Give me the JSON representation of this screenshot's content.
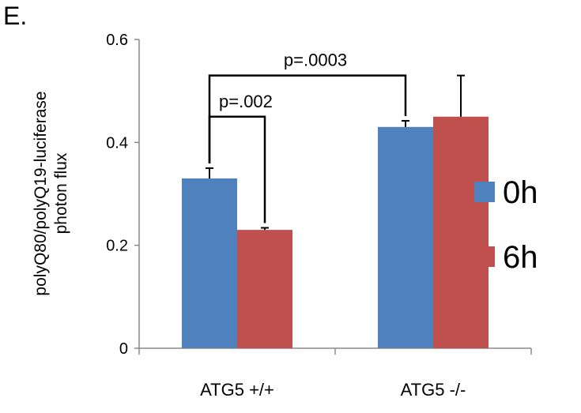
{
  "panel_label": "E.",
  "chart_data": {
    "type": "bar",
    "categories": [
      "ATG5 +/+",
      "ATG5 -/-"
    ],
    "series": [
      {
        "name": "0h",
        "values": [
          0.33,
          0.43
        ],
        "errors": [
          0.02,
          0.012
        ],
        "color": "#4f81bd"
      },
      {
        "name": "6h",
        "values": [
          0.23,
          0.45
        ],
        "errors": [
          0.004,
          0.08
        ],
        "color": "#c0504d"
      }
    ],
    "ylabel_lines": [
      "polyQ80/polyQ19-luciferase",
      "photon flux"
    ],
    "ylim": [
      0,
      0.6
    ],
    "yticks": [
      0,
      0.2,
      0.4,
      0.6
    ],
    "ytick_labels": [
      "0",
      "0.2",
      "0.4",
      "0.6"
    ],
    "legend_position": "right",
    "grid": false,
    "annotations": [
      {
        "text": "p=.002",
        "from": [
          0,
          0
        ],
        "to": [
          0,
          1
        ]
      },
      {
        "text": "p=.0003",
        "from": [
          0,
          0
        ],
        "to": [
          1,
          0
        ]
      }
    ]
  }
}
